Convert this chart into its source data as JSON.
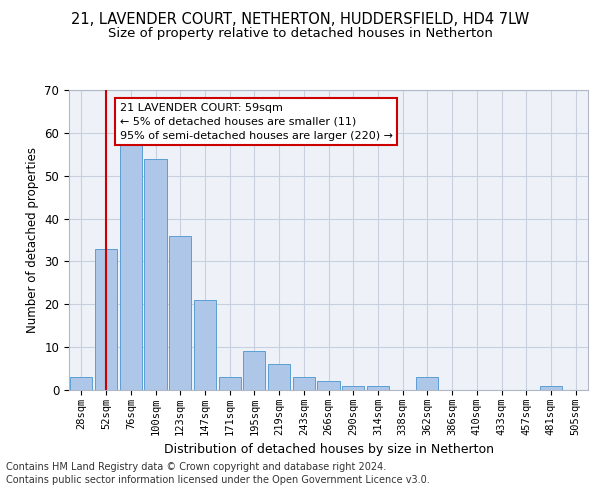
{
  "title1": "21, LAVENDER COURT, NETHERTON, HUDDERSFIELD, HD4 7LW",
  "title2": "Size of property relative to detached houses in Netherton",
  "xlabel": "Distribution of detached houses by size in Netherton",
  "ylabel": "Number of detached properties",
  "bins": [
    "28sqm",
    "52sqm",
    "76sqm",
    "100sqm",
    "123sqm",
    "147sqm",
    "171sqm",
    "195sqm",
    "219sqm",
    "243sqm",
    "266sqm",
    "290sqm",
    "314sqm",
    "338sqm",
    "362sqm",
    "386sqm",
    "410sqm",
    "433sqm",
    "457sqm",
    "481sqm",
    "505sqm"
  ],
  "bar_values": [
    3,
    33,
    58,
    54,
    36,
    21,
    3,
    9,
    6,
    3,
    2,
    1,
    1,
    0,
    3,
    0,
    0,
    0,
    0,
    1,
    0
  ],
  "bar_color": "#aec6e8",
  "bar_edge_color": "#5a9fd4",
  "vline_x": 1,
  "vline_color": "#cc0000",
  "ylim": [
    0,
    70
  ],
  "yticks": [
    0,
    10,
    20,
    30,
    40,
    50,
    60,
    70
  ],
  "annotation_title": "21 LAVENDER COURT: 59sqm",
  "annotation_line1": "← 5% of detached houses are smaller (11)",
  "annotation_line2": "95% of semi-detached houses are larger (220) →",
  "annotation_box_color": "#ffffff",
  "annotation_border_color": "#cc0000",
  "footer1": "Contains HM Land Registry data © Crown copyright and database right 2024.",
  "footer2": "Contains public sector information licensed under the Open Government Licence v3.0.",
  "bg_color": "#eef2f8",
  "grid_color": "#c8d0e0",
  "title1_fontsize": 10.5,
  "title2_fontsize": 9.5,
  "xlabel_fontsize": 9,
  "ylabel_fontsize": 8.5,
  "footer_fontsize": 7.0,
  "tick_fontsize": 7.5,
  "ann_fontsize": 8.0
}
